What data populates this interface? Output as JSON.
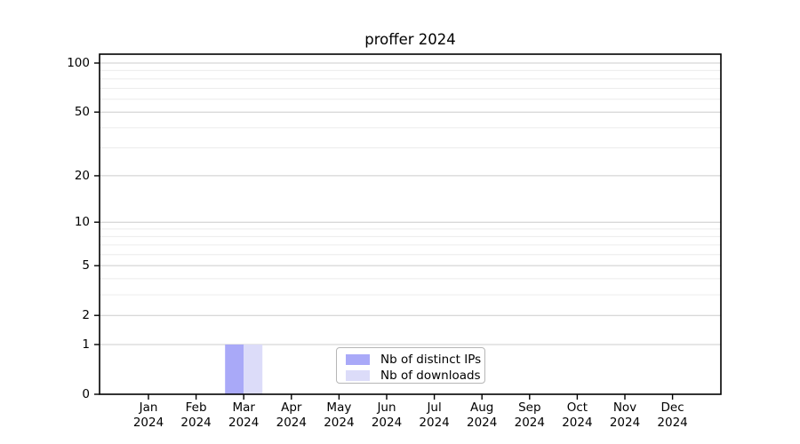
{
  "chart_data": {
    "type": "bar",
    "title": "proffer 2024",
    "categories": [
      "Jan",
      "Feb",
      "Mar",
      "Apr",
      "May",
      "Jun",
      "Jul",
      "Aug",
      "Sep",
      "Oct",
      "Nov",
      "Dec"
    ],
    "category_year": "2024",
    "series": [
      {
        "name": "Nb of distinct IPs",
        "color": "#a9a9f8",
        "values": [
          0,
          0,
          1,
          0,
          0,
          0,
          0,
          0,
          0,
          0,
          0,
          0
        ]
      },
      {
        "name": "Nb of downloads",
        "color": "#dcdcf9",
        "values": [
          0,
          0,
          1,
          0,
          0,
          0,
          0,
          0,
          0,
          0,
          0,
          0
        ]
      }
    ],
    "y_axis": {
      "scale": "log10(1+x)",
      "major_ticks": [
        0,
        1,
        2,
        5,
        10,
        20,
        50,
        100
      ],
      "minor_ticks": [
        3,
        4,
        6,
        7,
        8,
        9,
        30,
        40,
        60,
        70,
        80,
        90
      ],
      "ylim": [
        0,
        112
      ]
    },
    "x_axis": {
      "tick_label_lines": 2
    },
    "legend": {
      "position": "lower center",
      "frame": true
    },
    "grid": true,
    "colors": {
      "major_grid": "#cccccc",
      "minor_grid": "#ececec",
      "spine": "#000000",
      "background": "#ffffff"
    }
  }
}
